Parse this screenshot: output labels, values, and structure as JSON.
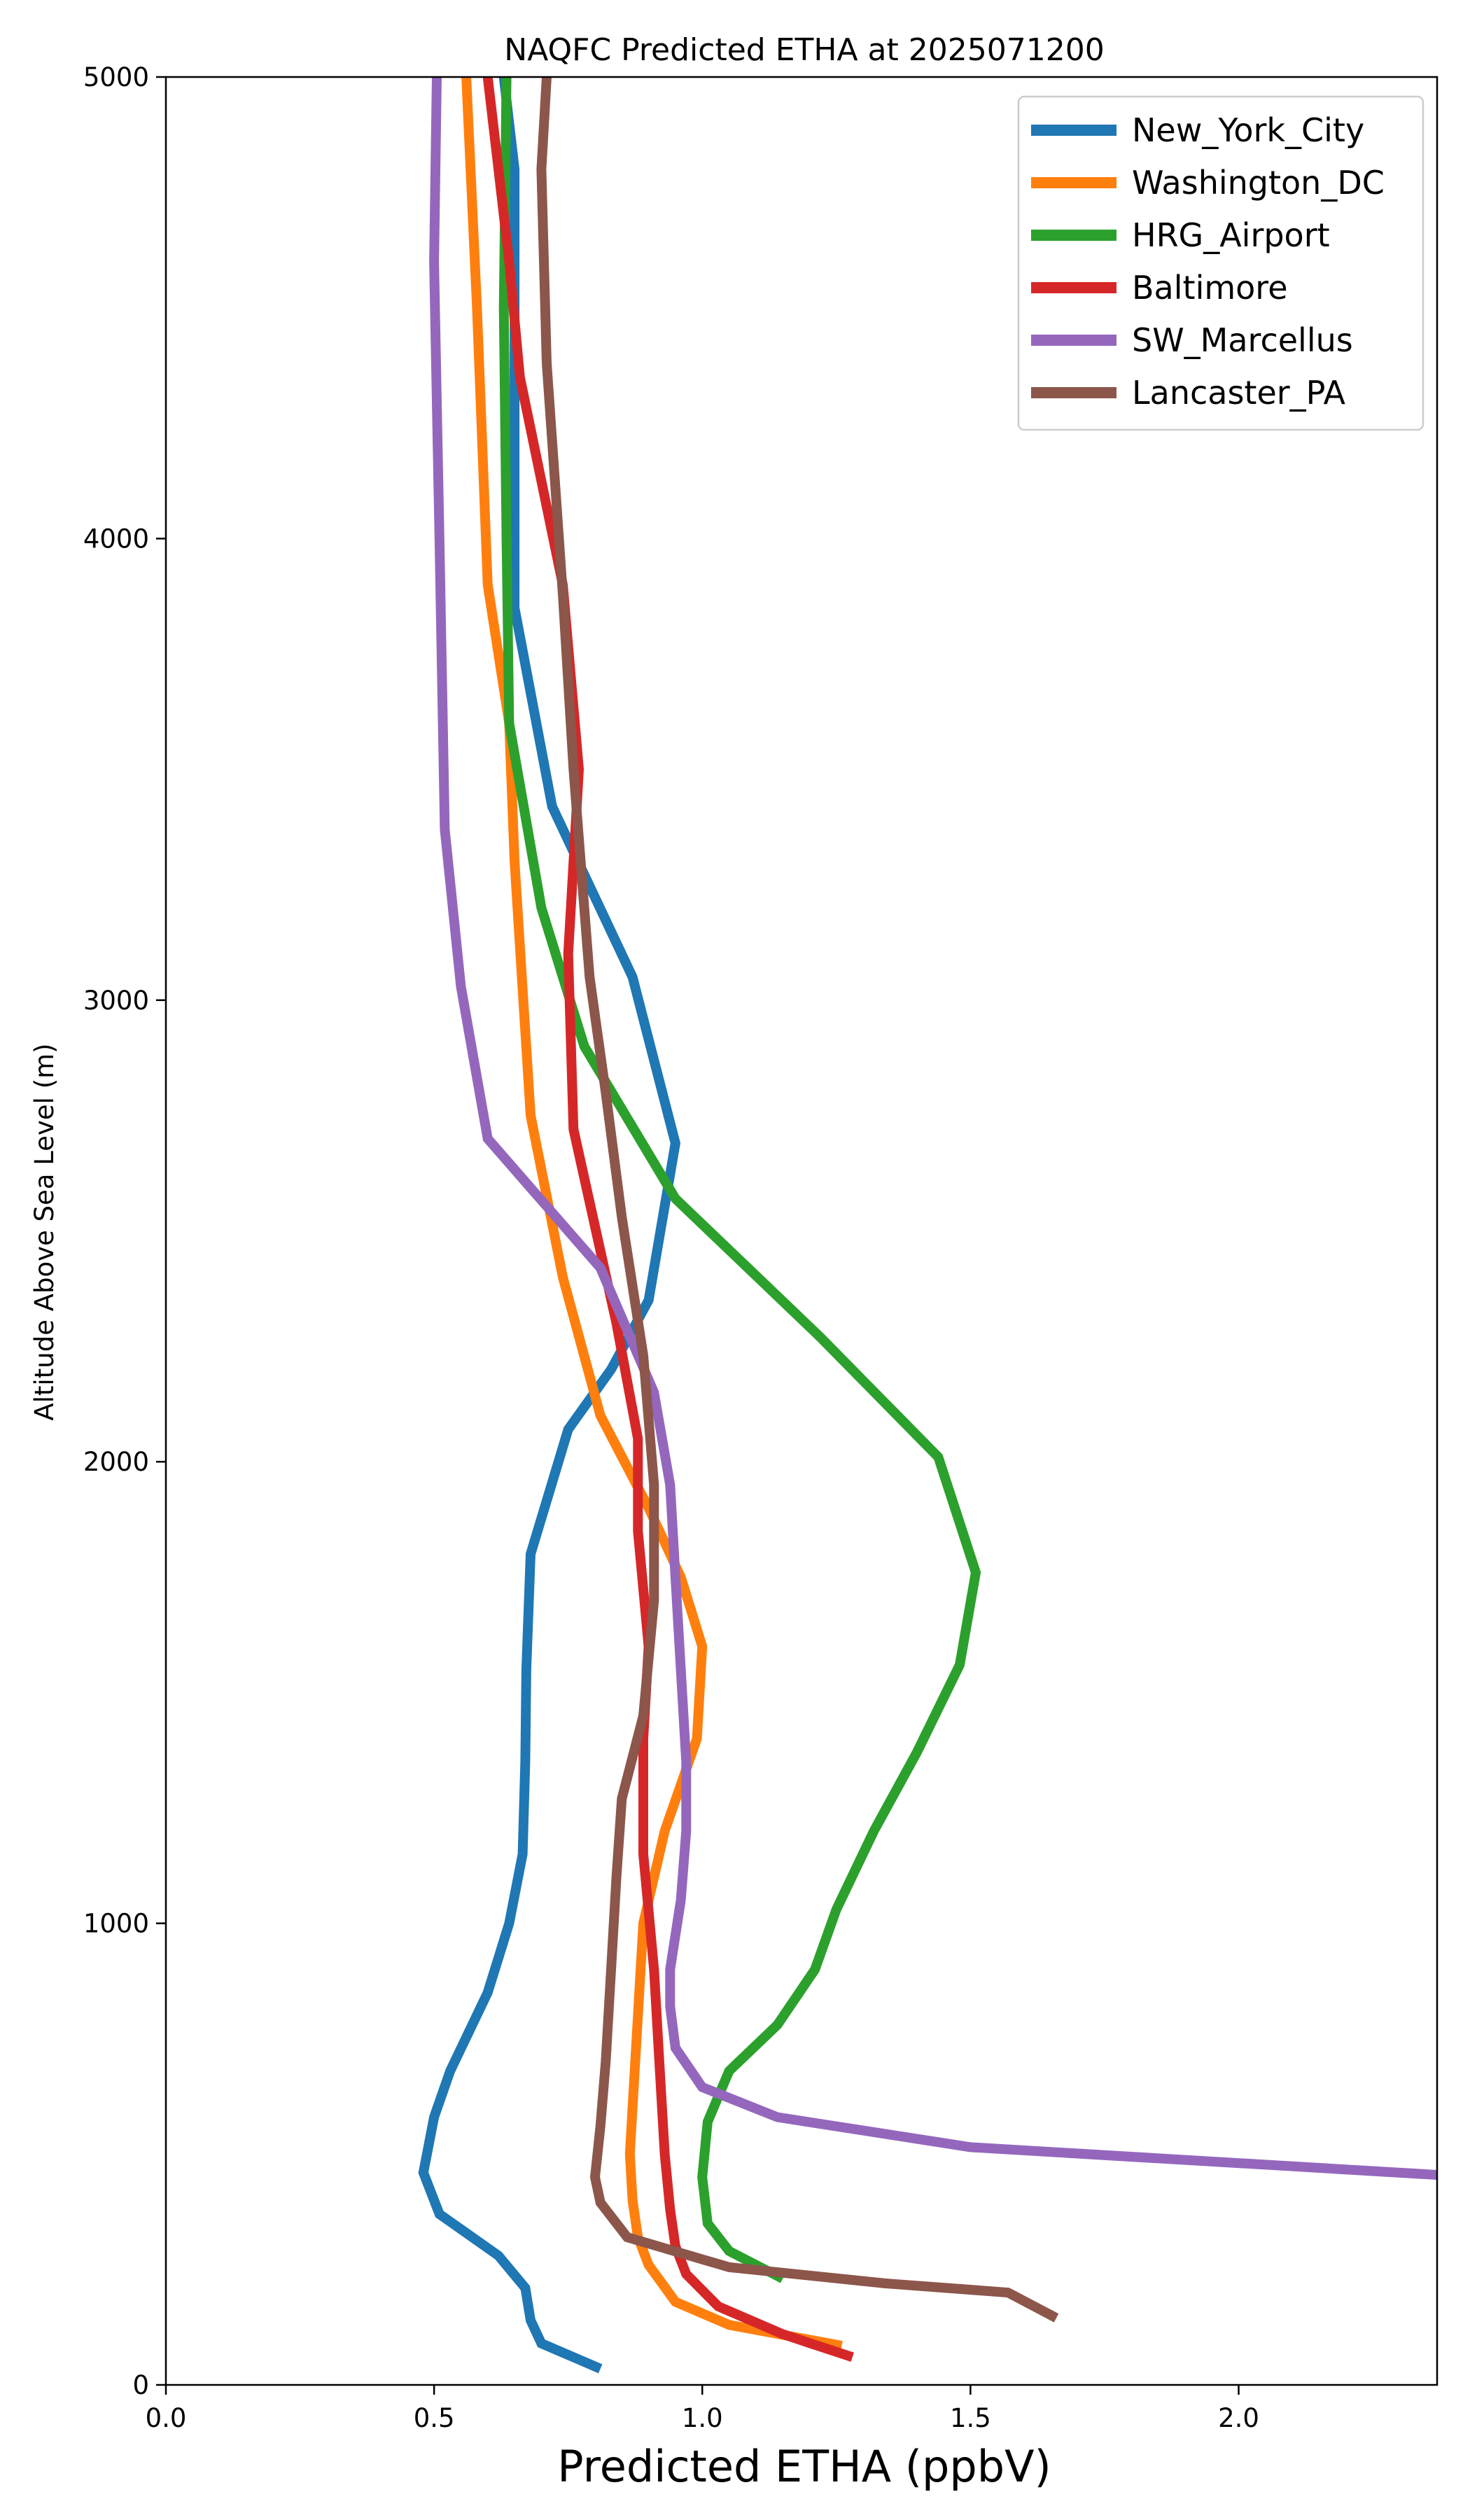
{
  "chart_data": {
    "type": "line",
    "title": "NAQFC Predicted ETHA at 2025071200",
    "xlabel": "Predicted ETHA (ppbV)",
    "ylabel": "Altitude Above Sea Level (m)",
    "xlim": [
      0.0,
      2.37
    ],
    "ylim": [
      0,
      5000
    ],
    "xticks": [
      "0.0",
      "0.5",
      "1.0",
      "1.5",
      "2.0"
    ],
    "yticks": [
      "0",
      "1000",
      "2000",
      "3000",
      "4000",
      "5000"
    ],
    "grid": false,
    "legend_position": "top-right",
    "series": [
      {
        "name": "New_York_City",
        "color": "#1f77b4",
        "points": [
          [
            0.81,
            35
          ],
          [
            0.7,
            90
          ],
          [
            0.68,
            140
          ],
          [
            0.67,
            210
          ],
          [
            0.62,
            280
          ],
          [
            0.51,
            370
          ],
          [
            0.48,
            460
          ],
          [
            0.5,
            580
          ],
          [
            0.53,
            680
          ],
          [
            0.6,
            850
          ],
          [
            0.64,
            1000
          ],
          [
            0.665,
            1150
          ],
          [
            0.67,
            1350
          ],
          [
            0.672,
            1550
          ],
          [
            0.68,
            1800
          ],
          [
            0.75,
            2070
          ],
          [
            0.83,
            2200
          ],
          [
            0.9,
            2350
          ],
          [
            0.95,
            2690
          ],
          [
            0.87,
            3050
          ],
          [
            0.72,
            3420
          ],
          [
            0.65,
            3850
          ],
          [
            0.65,
            4150
          ],
          [
            0.65,
            4800
          ],
          [
            0.63,
            5000
          ]
        ]
      },
      {
        "name": "Washington_DC",
        "color": "#ff7f0e",
        "points": [
          [
            1.26,
            85
          ],
          [
            1.05,
            130
          ],
          [
            0.95,
            180
          ],
          [
            0.9,
            260
          ],
          [
            0.88,
            320
          ],
          [
            0.87,
            400
          ],
          [
            0.865,
            500
          ],
          [
            0.87,
            600
          ],
          [
            0.88,
            800
          ],
          [
            0.89,
            1000
          ],
          [
            0.93,
            1200
          ],
          [
            0.99,
            1400
          ],
          [
            1.0,
            1600
          ],
          [
            0.96,
            1750
          ],
          [
            0.9,
            1900
          ],
          [
            0.81,
            2100
          ],
          [
            0.74,
            2400
          ],
          [
            0.68,
            2750
          ],
          [
            0.65,
            3300
          ],
          [
            0.64,
            3600
          ],
          [
            0.6,
            3900
          ],
          [
            0.58,
            4500
          ],
          [
            0.56,
            5000
          ]
        ]
      },
      {
        "name": "HRG_Airport",
        "color": "#2ca02c",
        "points": [
          [
            1.15,
            230
          ],
          [
            1.05,
            290
          ],
          [
            1.01,
            350
          ],
          [
            1.0,
            450
          ],
          [
            1.01,
            570
          ],
          [
            1.05,
            680
          ],
          [
            1.14,
            780
          ],
          [
            1.21,
            900
          ],
          [
            1.25,
            1030
          ],
          [
            1.32,
            1200
          ],
          [
            1.4,
            1370
          ],
          [
            1.48,
            1560
          ],
          [
            1.51,
            1760
          ],
          [
            1.44,
            2010
          ],
          [
            1.22,
            2270
          ],
          [
            0.95,
            2570
          ],
          [
            0.78,
            2900
          ],
          [
            0.7,
            3200
          ],
          [
            0.64,
            3600
          ],
          [
            0.635,
            4000
          ],
          [
            0.63,
            4500
          ],
          [
            0.635,
            5000
          ]
        ]
      },
      {
        "name": "Baltimore",
        "color": "#d62728",
        "points": [
          [
            1.28,
            60
          ],
          [
            1.15,
            110
          ],
          [
            1.03,
            170
          ],
          [
            0.97,
            240
          ],
          [
            0.95,
            300
          ],
          [
            0.94,
            380
          ],
          [
            0.93,
            500
          ],
          [
            0.92,
            700
          ],
          [
            0.91,
            900
          ],
          [
            0.89,
            1150
          ],
          [
            0.89,
            1400
          ],
          [
            0.9,
            1600
          ],
          [
            0.88,
            1850
          ],
          [
            0.88,
            2050
          ],
          [
            0.84,
            2300
          ],
          [
            0.76,
            2720
          ],
          [
            0.75,
            3100
          ],
          [
            0.77,
            3500
          ],
          [
            0.74,
            3900
          ],
          [
            0.66,
            4350
          ],
          [
            0.64,
            4600
          ],
          [
            0.62,
            4800
          ],
          [
            0.6,
            5000
          ]
        ]
      },
      {
        "name": "SW_Marcellus",
        "color": "#9467bd",
        "points": [
          [
            2.37,
            455
          ],
          [
            1.5,
            515
          ],
          [
            1.14,
            580
          ],
          [
            1.0,
            645
          ],
          [
            0.95,
            730
          ],
          [
            0.94,
            820
          ],
          [
            0.94,
            900
          ],
          [
            0.96,
            1050
          ],
          [
            0.97,
            1200
          ],
          [
            0.97,
            1350
          ],
          [
            0.96,
            1550
          ],
          [
            0.95,
            1750
          ],
          [
            0.94,
            1950
          ],
          [
            0.91,
            2150
          ],
          [
            0.81,
            2420
          ],
          [
            0.6,
            2700
          ],
          [
            0.55,
            3030
          ],
          [
            0.52,
            3370
          ],
          [
            0.51,
            4000
          ],
          [
            0.5,
            4600
          ],
          [
            0.505,
            5000
          ]
        ]
      },
      {
        "name": "Lancaster_PA",
        "color": "#8c564b",
        "points": [
          [
            1.66,
            145
          ],
          [
            1.57,
            200
          ],
          [
            1.34,
            220
          ],
          [
            1.05,
            255
          ],
          [
            0.86,
            320
          ],
          [
            0.81,
            395
          ],
          [
            0.8,
            450
          ],
          [
            0.81,
            560
          ],
          [
            0.82,
            700
          ],
          [
            0.83,
            900
          ],
          [
            0.84,
            1100
          ],
          [
            0.85,
            1270
          ],
          [
            0.89,
            1450
          ],
          [
            0.91,
            1700
          ],
          [
            0.91,
            1950
          ],
          [
            0.89,
            2230
          ],
          [
            0.85,
            2530
          ],
          [
            0.82,
            2800
          ],
          [
            0.79,
            3050
          ],
          [
            0.76,
            3500
          ],
          [
            0.74,
            3880
          ],
          [
            0.71,
            4380
          ],
          [
            0.7,
            4800
          ],
          [
            0.71,
            5000
          ]
        ]
      }
    ]
  }
}
